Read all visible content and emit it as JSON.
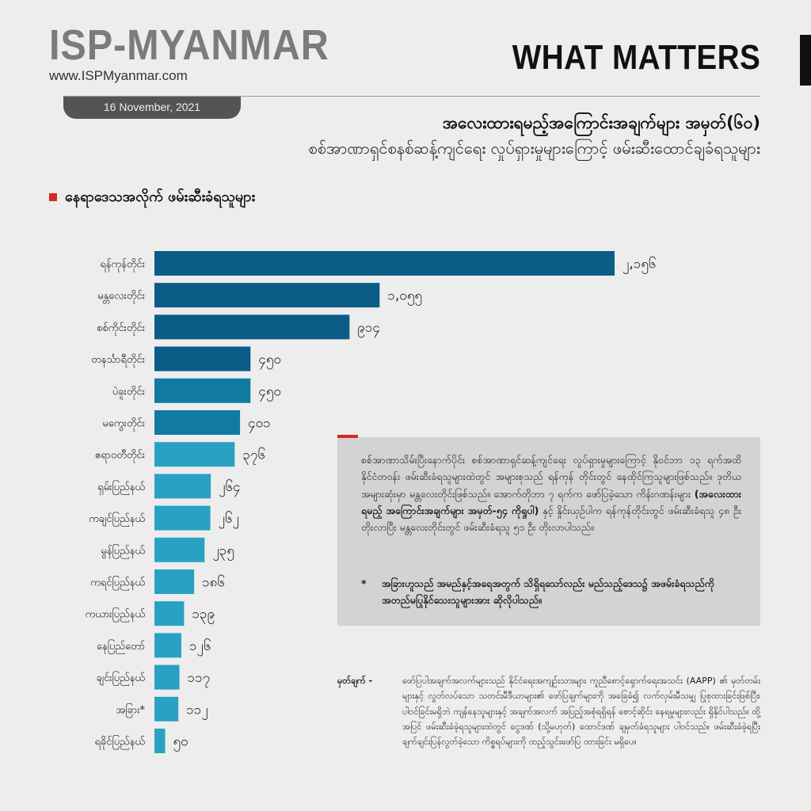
{
  "brand": {
    "name": "ISP-MYANMAR",
    "url": "www.ISPMyanmar.com"
  },
  "tag": "WHAT MATTERS",
  "date": "16 November, 2021",
  "headline": {
    "title": "အလေးထားရမည့်အကြောင်းအချက်များ အမှတ်(၆၀)",
    "subtitle": "စစ်အာဏာရှင်စနစ်ဆန့်ကျင်ရေး လှုပ်ရှားမှုများကြောင့် ဖမ်းဆီးထောင်ချခံရသူများ"
  },
  "section_label": "နေရာဒေသအလိုက် ဖမ်းဆီးခံရသူများ",
  "colors": {
    "dark": "#0b5c86",
    "mid": "#117aa3",
    "light": "#2aa1c2",
    "accent": "#d7262c"
  },
  "chart_data": {
    "type": "bar",
    "orientation": "horizontal",
    "categories": [
      "ရန်ကုန်တိုင်း",
      "မန္တလေးတိုင်း",
      "စစ်ကိုင်းတိုင်း",
      "တနင်္သာရီတိုင်း",
      "ပဲခူးတိုင်း",
      "မကွေးတိုင်း",
      "ဧရာဝတီတိုင်း",
      "ရှမ်းပြည်နယ်",
      "ကချင်ပြည်နယ်",
      "မွန်ပြည်နယ်",
      "ကရင်ပြည်နယ်",
      "ကယားပြည်နယ်",
      "နေပြည်တော်",
      "ချင်းပြည်နယ်",
      "အခြား*",
      "ရခိုင်ပြည်နယ်"
    ],
    "values": [
      2156,
      1055,
      914,
      450,
      450,
      401,
      376,
      264,
      262,
      235,
      186,
      139,
      126,
      117,
      112,
      50
    ],
    "value_labels": [
      "၂,၁၅၆",
      "၁,၀၅၅",
      "၉၁၄",
      "၄၅၀",
      "၄၅၀",
      "၄၀၁",
      "၃၇၆",
      "၂၆၄",
      "၂၆၂",
      "၂၃၅",
      "၁၈၆",
      "၁၃၉",
      "၁၂၆",
      "၁၁၇",
      "၁၁၂",
      "၅၀"
    ],
    "xlim": [
      0,
      2156
    ]
  },
  "infobox": {
    "para_1": "စစ်အာဏာသိမ်းပြီးနောက်ပိုင်း စစ်အာဏာရှင်ဆန့်ကျင်ရေး လှုပ်ရှားမှုများကြောင့် နိုဝင်ဘာ ၁၃ ရက်အထိ နိုင်ငံတဝန်း ဖမ်းဆီးခံရသူများထဲတွင် အများစုသည် ရန်ကုန် တိုင်းတွင် နေထိုင်ကြသူများဖြစ်သည်။ ဒုတိယအများဆုံးမှာ မန္တလေးတိုင်းဖြစ်သည်။ အောက်တိုဘာ ၇ ရက်က ဖော်ပြခဲ့သော ကိန်းဂဏန်းများ",
    "para_bold": "(အလေးထားရမည့် အကြောင်းအချက်များ အမှတ်-၅၄ ကိုရှုပါ)",
    "para_2": "နှင့် နှိုင်းယှဉ်ပါက ရန်ကုန်တိုင်းတွင် ဖမ်းဆီးခံရသူ ၄၈ ဦးတိုးလာပြီး မန္တလေးတိုင်းတွင် ဖမ်းဆီးခံရသူ ၅၁ ဦး တိုးလာပါသည်။",
    "note_star": "*",
    "note_text": "အခြားဟူသည် အမည်နှင့်အရေအတွက် သိရှိရသော်လည်း မည်သည့်ဒေသ၌ အဖမ်းခံရသည်ကို အတည်မပြုနိုင်သေးသူများအား ဆိုလိုပါသည်။"
  },
  "source": {
    "label": "မှတ်ချက် -",
    "text": "ဖော်ပြပါအချက်အလက်များသည် နိုင်ငံရေးအကျဉ်းသားများ ကူညီစောင့်ရှောက်ရေးအသင်း (AAPP) ၏ မှတ်တမ်းများနှင့် လွတ်လပ်သော သတင်းမီဒီယာများ၏ ဖော်ပြချက်များကို အခြေခံ၍ လက်လှမ်းမီသမျှ ပြုစုထားခြင်းဖြစ်ပြီး၊ ပါဝင်ခြင်းမရှိဘဲ ကျန်နေသူများနှင့် အချက်အလက် အပြည့်အစုံရရှိရန် စောင့်ဆိုင်း နေရမှုများလည်း ရှိနိုင်ပါသည်။ ထို့အပြင် ဖမ်းဆီးခံခဲ့ရသူများထဲတွင် ငွေဒဏ် (သို့မဟုတ်) ထောင်ဒဏ် ချမှတ်ခံရသူများ ပါဝင်သည်။ ဖမ်းဆီးခံခဲ့ရပြီး ချက်ချင်းပြန်လွတ်ခဲ့သော ကိစ္စရပ်များကို ထည့်သွင်းဖော်ပြ ထားခြင်း မရှိပေ။"
  }
}
